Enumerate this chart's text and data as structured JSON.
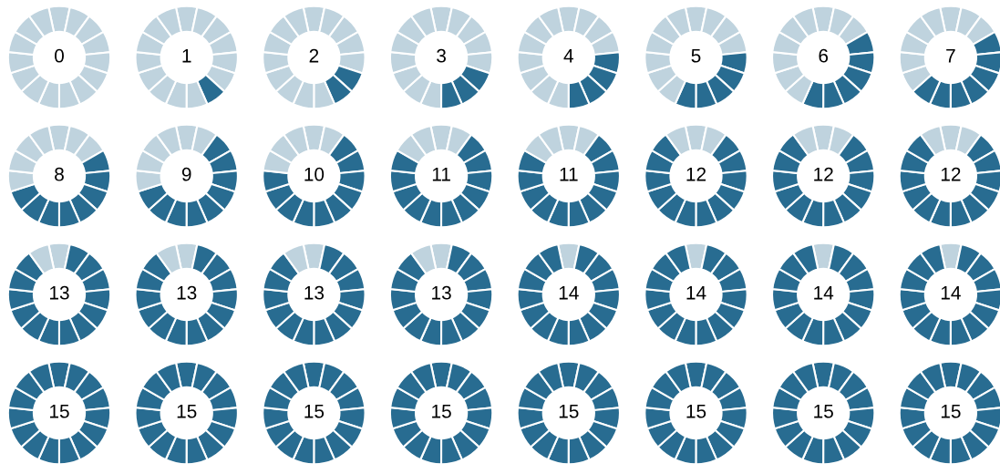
{
  "chart_data": [
    {
      "type": "donut",
      "annotations": [
        "0"
      ],
      "categories": [
        null,
        null,
        null,
        null,
        null,
        null,
        null,
        null,
        null,
        null,
        null,
        null,
        null,
        null,
        null
      ],
      "values": [
        6.67,
        6.67,
        6.67,
        6.67,
        6.67,
        6.67,
        6.67,
        6.67,
        6.67,
        6.67,
        6.66,
        6.66,
        6.66,
        6.66,
        6.66
      ],
      "colors": [
        "#bfd3de",
        "#bfd3de",
        "#bfd3de",
        "#bfd3de",
        "#bfd3de",
        "#bfd3de",
        "#bfd3de",
        "#bfd3de",
        "#bfd3de",
        "#bfd3de",
        "#bfd3de",
        "#bfd3de",
        "#bfd3de",
        "#bfd3de",
        "#bfd3de"
      ]
    },
    {
      "type": "donut",
      "annotations": [
        "1"
      ],
      "categories": [
        null,
        null,
        null,
        null,
        null,
        null,
        null,
        null,
        null,
        null,
        null,
        null,
        null,
        null,
        null
      ],
      "values": [
        6.67,
        6.67,
        6.67,
        6.67,
        6.67,
        6.67,
        6.67,
        6.67,
        6.67,
        6.67,
        6.66,
        6.66,
        6.66,
        6.66,
        6.66
      ],
      "colors": [
        "#bfd3de",
        "#bfd3de",
        "#bfd3de",
        "#bfd3de",
        "#bfd3de",
        "#bfd3de",
        "#286c91",
        "#bfd3de",
        "#bfd3de",
        "#bfd3de",
        "#bfd3de",
        "#bfd3de",
        "#bfd3de",
        "#bfd3de",
        "#bfd3de"
      ]
    },
    {
      "type": "donut",
      "annotations": [
        "2"
      ],
      "categories": [
        null,
        null,
        null,
        null,
        null,
        null,
        null,
        null,
        null,
        null,
        null,
        null,
        null,
        null,
        null
      ],
      "values": [
        6.67,
        6.67,
        6.67,
        6.67,
        6.67,
        6.67,
        6.67,
        6.67,
        6.67,
        6.67,
        6.66,
        6.66,
        6.66,
        6.66,
        6.66
      ],
      "colors": [
        "#bfd3de",
        "#bfd3de",
        "#bfd3de",
        "#bfd3de",
        "#bfd3de",
        "#286c91",
        "#286c91",
        "#bfd3de",
        "#bfd3de",
        "#bfd3de",
        "#bfd3de",
        "#bfd3de",
        "#bfd3de",
        "#bfd3de",
        "#bfd3de"
      ]
    },
    {
      "type": "donut",
      "annotations": [
        "3"
      ],
      "categories": [
        null,
        null,
        null,
        null,
        null,
        null,
        null,
        null,
        null,
        null,
        null,
        null,
        null,
        null,
        null
      ],
      "values": [
        6.67,
        6.67,
        6.67,
        6.67,
        6.67,
        6.67,
        6.67,
        6.67,
        6.67,
        6.67,
        6.66,
        6.66,
        6.66,
        6.66,
        6.66
      ],
      "colors": [
        "#bfd3de",
        "#bfd3de",
        "#bfd3de",
        "#bfd3de",
        "#bfd3de",
        "#286c91",
        "#286c91",
        "#286c91",
        "#bfd3de",
        "#bfd3de",
        "#bfd3de",
        "#bfd3de",
        "#bfd3de",
        "#bfd3de",
        "#bfd3de"
      ]
    },
    {
      "type": "donut",
      "annotations": [
        "4"
      ],
      "categories": [
        null,
        null,
        null,
        null,
        null,
        null,
        null,
        null,
        null,
        null,
        null,
        null,
        null,
        null,
        null
      ],
      "values": [
        6.67,
        6.67,
        6.67,
        6.67,
        6.67,
        6.67,
        6.67,
        6.67,
        6.67,
        6.67,
        6.66,
        6.66,
        6.66,
        6.66,
        6.66
      ],
      "colors": [
        "#bfd3de",
        "#bfd3de",
        "#bfd3de",
        "#bfd3de",
        "#286c91",
        "#286c91",
        "#286c91",
        "#286c91",
        "#bfd3de",
        "#bfd3de",
        "#bfd3de",
        "#bfd3de",
        "#bfd3de",
        "#bfd3de",
        "#bfd3de"
      ]
    },
    {
      "type": "donut",
      "annotations": [
        "5"
      ],
      "categories": [
        null,
        null,
        null,
        null,
        null,
        null,
        null,
        null,
        null,
        null,
        null,
        null,
        null,
        null,
        null
      ],
      "values": [
        6.67,
        6.67,
        6.67,
        6.67,
        6.67,
        6.67,
        6.67,
        6.67,
        6.67,
        6.67,
        6.66,
        6.66,
        6.66,
        6.66,
        6.66
      ],
      "colors": [
        "#bfd3de",
        "#bfd3de",
        "#bfd3de",
        "#bfd3de",
        "#286c91",
        "#286c91",
        "#286c91",
        "#286c91",
        "#286c91",
        "#bfd3de",
        "#bfd3de",
        "#bfd3de",
        "#bfd3de",
        "#bfd3de",
        "#bfd3de"
      ]
    },
    {
      "type": "donut",
      "annotations": [
        "6"
      ],
      "categories": [
        null,
        null,
        null,
        null,
        null,
        null,
        null,
        null,
        null,
        null,
        null,
        null,
        null,
        null,
        null
      ],
      "values": [
        6.67,
        6.67,
        6.67,
        6.67,
        6.67,
        6.67,
        6.67,
        6.67,
        6.67,
        6.67,
        6.66,
        6.66,
        6.66,
        6.66,
        6.66
      ],
      "colors": [
        "#bfd3de",
        "#bfd3de",
        "#bfd3de",
        "#286c91",
        "#286c91",
        "#286c91",
        "#286c91",
        "#286c91",
        "#286c91",
        "#bfd3de",
        "#bfd3de",
        "#bfd3de",
        "#bfd3de",
        "#bfd3de",
        "#bfd3de"
      ]
    },
    {
      "type": "donut",
      "annotations": [
        "7"
      ],
      "categories": [
        null,
        null,
        null,
        null,
        null,
        null,
        null,
        null,
        null,
        null,
        null,
        null,
        null,
        null,
        null
      ],
      "values": [
        6.67,
        6.67,
        6.67,
        6.67,
        6.67,
        6.67,
        6.67,
        6.67,
        6.67,
        6.67,
        6.66,
        6.66,
        6.66,
        6.66,
        6.66
      ],
      "colors": [
        "#bfd3de",
        "#bfd3de",
        "#bfd3de",
        "#286c91",
        "#286c91",
        "#286c91",
        "#286c91",
        "#286c91",
        "#286c91",
        "#286c91",
        "#bfd3de",
        "#bfd3de",
        "#bfd3de",
        "#bfd3de",
        "#bfd3de"
      ]
    },
    {
      "type": "donut",
      "annotations": [
        "8"
      ],
      "categories": [
        null,
        null,
        null,
        null,
        null,
        null,
        null,
        null,
        null,
        null,
        null,
        null,
        null,
        null,
        null
      ],
      "values": [
        6.67,
        6.67,
        6.67,
        6.67,
        6.67,
        6.67,
        6.67,
        6.67,
        6.67,
        6.67,
        6.66,
        6.66,
        6.66,
        6.66,
        6.66
      ],
      "colors": [
        "#bfd3de",
        "#bfd3de",
        "#bfd3de",
        "#286c91",
        "#286c91",
        "#286c91",
        "#286c91",
        "#286c91",
        "#286c91",
        "#286c91",
        "#286c91",
        "#bfd3de",
        "#bfd3de",
        "#bfd3de",
        "#bfd3de"
      ]
    },
    {
      "type": "donut",
      "annotations": [
        "9"
      ],
      "categories": [
        null,
        null,
        null,
        null,
        null,
        null,
        null,
        null,
        null,
        null,
        null,
        null,
        null,
        null,
        null
      ],
      "values": [
        6.67,
        6.67,
        6.67,
        6.67,
        6.67,
        6.67,
        6.67,
        6.67,
        6.67,
        6.67,
        6.66,
        6.66,
        6.66,
        6.66,
        6.66
      ],
      "colors": [
        "#bfd3de",
        "#bfd3de",
        "#286c91",
        "#286c91",
        "#286c91",
        "#286c91",
        "#286c91",
        "#286c91",
        "#286c91",
        "#286c91",
        "#286c91",
        "#bfd3de",
        "#bfd3de",
        "#bfd3de",
        "#bfd3de"
      ]
    },
    {
      "type": "donut",
      "annotations": [
        "10"
      ],
      "categories": [
        null,
        null,
        null,
        null,
        null,
        null,
        null,
        null,
        null,
        null,
        null,
        null,
        null,
        null,
        null
      ],
      "values": [
        6.67,
        6.67,
        6.67,
        6.67,
        6.67,
        6.67,
        6.67,
        6.67,
        6.67,
        6.67,
        6.66,
        6.66,
        6.66,
        6.66,
        6.66
      ],
      "colors": [
        "#bfd3de",
        "#bfd3de",
        "#286c91",
        "#286c91",
        "#286c91",
        "#286c91",
        "#286c91",
        "#286c91",
        "#286c91",
        "#286c91",
        "#286c91",
        "#286c91",
        "#bfd3de",
        "#bfd3de",
        "#bfd3de"
      ]
    },
    {
      "type": "donut",
      "annotations": [
        "11"
      ],
      "categories": [
        null,
        null,
        null,
        null,
        null,
        null,
        null,
        null,
        null,
        null,
        null,
        null,
        null,
        null,
        null
      ],
      "values": [
        6.67,
        6.67,
        6.67,
        6.67,
        6.67,
        6.67,
        6.67,
        6.67,
        6.67,
        6.67,
        6.66,
        6.66,
        6.66,
        6.66,
        6.66
      ],
      "colors": [
        "#bfd3de",
        "#bfd3de",
        "#286c91",
        "#286c91",
        "#286c91",
        "#286c91",
        "#286c91",
        "#286c91",
        "#286c91",
        "#286c91",
        "#286c91",
        "#286c91",
        "#286c91",
        "#bfd3de",
        "#bfd3de"
      ]
    },
    {
      "type": "donut",
      "annotations": [
        "11"
      ],
      "categories": [
        null,
        null,
        null,
        null,
        null,
        null,
        null,
        null,
        null,
        null,
        null,
        null,
        null,
        null,
        null
      ],
      "values": [
        6.67,
        6.67,
        6.67,
        6.67,
        6.67,
        6.67,
        6.67,
        6.67,
        6.67,
        6.67,
        6.66,
        6.66,
        6.66,
        6.66,
        6.66
      ],
      "colors": [
        "#bfd3de",
        "#bfd3de",
        "#286c91",
        "#286c91",
        "#286c91",
        "#286c91",
        "#286c91",
        "#286c91",
        "#286c91",
        "#286c91",
        "#286c91",
        "#286c91",
        "#286c91",
        "#bfd3de",
        "#bfd3de"
      ]
    },
    {
      "type": "donut",
      "annotations": [
        "12"
      ],
      "categories": [
        null,
        null,
        null,
        null,
        null,
        null,
        null,
        null,
        null,
        null,
        null,
        null,
        null,
        null,
        null
      ],
      "values": [
        6.67,
        6.67,
        6.67,
        6.67,
        6.67,
        6.67,
        6.67,
        6.67,
        6.67,
        6.67,
        6.66,
        6.66,
        6.66,
        6.66,
        6.66
      ],
      "colors": [
        "#bfd3de",
        "#bfd3de",
        "#286c91",
        "#286c91",
        "#286c91",
        "#286c91",
        "#286c91",
        "#286c91",
        "#286c91",
        "#286c91",
        "#286c91",
        "#286c91",
        "#286c91",
        "#286c91",
        "#bfd3de"
      ]
    },
    {
      "type": "donut",
      "annotations": [
        "12"
      ],
      "categories": [
        null,
        null,
        null,
        null,
        null,
        null,
        null,
        null,
        null,
        null,
        null,
        null,
        null,
        null,
        null
      ],
      "values": [
        6.67,
        6.67,
        6.67,
        6.67,
        6.67,
        6.67,
        6.67,
        6.67,
        6.67,
        6.67,
        6.66,
        6.66,
        6.66,
        6.66,
        6.66
      ],
      "colors": [
        "#bfd3de",
        "#bfd3de",
        "#286c91",
        "#286c91",
        "#286c91",
        "#286c91",
        "#286c91",
        "#286c91",
        "#286c91",
        "#286c91",
        "#286c91",
        "#286c91",
        "#286c91",
        "#286c91",
        "#bfd3de"
      ]
    },
    {
      "type": "donut",
      "annotations": [
        "12"
      ],
      "categories": [
        null,
        null,
        null,
        null,
        null,
        null,
        null,
        null,
        null,
        null,
        null,
        null,
        null,
        null,
        null
      ],
      "values": [
        6.67,
        6.67,
        6.67,
        6.67,
        6.67,
        6.67,
        6.67,
        6.67,
        6.67,
        6.67,
        6.66,
        6.66,
        6.66,
        6.66,
        6.66
      ],
      "colors": [
        "#bfd3de",
        "#bfd3de",
        "#286c91",
        "#286c91",
        "#286c91",
        "#286c91",
        "#286c91",
        "#286c91",
        "#286c91",
        "#286c91",
        "#286c91",
        "#286c91",
        "#286c91",
        "#286c91",
        "#bfd3de"
      ]
    },
    {
      "type": "donut",
      "annotations": [
        "13"
      ],
      "categories": [
        null,
        null,
        null,
        null,
        null,
        null,
        null,
        null,
        null,
        null,
        null,
        null,
        null,
        null,
        null
      ],
      "values": [
        6.67,
        6.67,
        6.67,
        6.67,
        6.67,
        6.67,
        6.67,
        6.67,
        6.67,
        6.67,
        6.66,
        6.66,
        6.66,
        6.66,
        6.66
      ],
      "colors": [
        "#bfd3de",
        "#286c91",
        "#286c91",
        "#286c91",
        "#286c91",
        "#286c91",
        "#286c91",
        "#286c91",
        "#286c91",
        "#286c91",
        "#286c91",
        "#286c91",
        "#286c91",
        "#286c91",
        "#bfd3de"
      ]
    },
    {
      "type": "donut",
      "annotations": [
        "13"
      ],
      "categories": [
        null,
        null,
        null,
        null,
        null,
        null,
        null,
        null,
        null,
        null,
        null,
        null,
        null,
        null,
        null
      ],
      "values": [
        6.67,
        6.67,
        6.67,
        6.67,
        6.67,
        6.67,
        6.67,
        6.67,
        6.67,
        6.67,
        6.66,
        6.66,
        6.66,
        6.66,
        6.66
      ],
      "colors": [
        "#bfd3de",
        "#286c91",
        "#286c91",
        "#286c91",
        "#286c91",
        "#286c91",
        "#286c91",
        "#286c91",
        "#286c91",
        "#286c91",
        "#286c91",
        "#286c91",
        "#286c91",
        "#286c91",
        "#bfd3de"
      ]
    },
    {
      "type": "donut",
      "annotations": [
        "13"
      ],
      "categories": [
        null,
        null,
        null,
        null,
        null,
        null,
        null,
        null,
        null,
        null,
        null,
        null,
        null,
        null,
        null
      ],
      "values": [
        6.67,
        6.67,
        6.67,
        6.67,
        6.67,
        6.67,
        6.67,
        6.67,
        6.67,
        6.67,
        6.66,
        6.66,
        6.66,
        6.66,
        6.66
      ],
      "colors": [
        "#bfd3de",
        "#286c91",
        "#286c91",
        "#286c91",
        "#286c91",
        "#286c91",
        "#286c91",
        "#286c91",
        "#286c91",
        "#286c91",
        "#286c91",
        "#286c91",
        "#286c91",
        "#286c91",
        "#bfd3de"
      ]
    },
    {
      "type": "donut",
      "annotations": [
        "13"
      ],
      "categories": [
        null,
        null,
        null,
        null,
        null,
        null,
        null,
        null,
        null,
        null,
        null,
        null,
        null,
        null,
        null
      ],
      "values": [
        6.67,
        6.67,
        6.67,
        6.67,
        6.67,
        6.67,
        6.67,
        6.67,
        6.67,
        6.67,
        6.66,
        6.66,
        6.66,
        6.66,
        6.66
      ],
      "colors": [
        "#bfd3de",
        "#286c91",
        "#286c91",
        "#286c91",
        "#286c91",
        "#286c91",
        "#286c91",
        "#286c91",
        "#286c91",
        "#286c91",
        "#286c91",
        "#286c91",
        "#286c91",
        "#286c91",
        "#bfd3de"
      ]
    },
    {
      "type": "donut",
      "annotations": [
        "14"
      ],
      "categories": [
        null,
        null,
        null,
        null,
        null,
        null,
        null,
        null,
        null,
        null,
        null,
        null,
        null,
        null,
        null
      ],
      "values": [
        6.67,
        6.67,
        6.67,
        6.67,
        6.67,
        6.67,
        6.67,
        6.67,
        6.67,
        6.67,
        6.66,
        6.66,
        6.66,
        6.66,
        6.66
      ],
      "colors": [
        "#bfd3de",
        "#286c91",
        "#286c91",
        "#286c91",
        "#286c91",
        "#286c91",
        "#286c91",
        "#286c91",
        "#286c91",
        "#286c91",
        "#286c91",
        "#286c91",
        "#286c91",
        "#286c91",
        "#286c91"
      ]
    },
    {
      "type": "donut",
      "annotations": [
        "14"
      ],
      "categories": [
        null,
        null,
        null,
        null,
        null,
        null,
        null,
        null,
        null,
        null,
        null,
        null,
        null,
        null,
        null
      ],
      "values": [
        6.67,
        6.67,
        6.67,
        6.67,
        6.67,
        6.67,
        6.67,
        6.67,
        6.67,
        6.67,
        6.66,
        6.66,
        6.66,
        6.66,
        6.66
      ],
      "colors": [
        "#bfd3de",
        "#286c91",
        "#286c91",
        "#286c91",
        "#286c91",
        "#286c91",
        "#286c91",
        "#286c91",
        "#286c91",
        "#286c91",
        "#286c91",
        "#286c91",
        "#286c91",
        "#286c91",
        "#286c91"
      ]
    },
    {
      "type": "donut",
      "annotations": [
        "14"
      ],
      "categories": [
        null,
        null,
        null,
        null,
        null,
        null,
        null,
        null,
        null,
        null,
        null,
        null,
        null,
        null,
        null
      ],
      "values": [
        6.67,
        6.67,
        6.67,
        6.67,
        6.67,
        6.67,
        6.67,
        6.67,
        6.67,
        6.67,
        6.66,
        6.66,
        6.66,
        6.66,
        6.66
      ],
      "colors": [
        "#bfd3de",
        "#286c91",
        "#286c91",
        "#286c91",
        "#286c91",
        "#286c91",
        "#286c91",
        "#286c91",
        "#286c91",
        "#286c91",
        "#286c91",
        "#286c91",
        "#286c91",
        "#286c91",
        "#286c91"
      ]
    },
    {
      "type": "donut",
      "annotations": [
        "14"
      ],
      "categories": [
        null,
        null,
        null,
        null,
        null,
        null,
        null,
        null,
        null,
        null,
        null,
        null,
        null,
        null,
        null
      ],
      "values": [
        6.67,
        6.67,
        6.67,
        6.67,
        6.67,
        6.67,
        6.67,
        6.67,
        6.67,
        6.67,
        6.66,
        6.66,
        6.66,
        6.66,
        6.66
      ],
      "colors": [
        "#bfd3de",
        "#286c91",
        "#286c91",
        "#286c91",
        "#286c91",
        "#286c91",
        "#286c91",
        "#286c91",
        "#286c91",
        "#286c91",
        "#286c91",
        "#286c91",
        "#286c91",
        "#286c91",
        "#286c91"
      ]
    },
    {
      "type": "donut",
      "annotations": [
        "15"
      ],
      "categories": [
        null,
        null,
        null,
        null,
        null,
        null,
        null,
        null,
        null,
        null,
        null,
        null,
        null,
        null,
        null
      ],
      "values": [
        6.67,
        6.67,
        6.67,
        6.67,
        6.67,
        6.67,
        6.67,
        6.67,
        6.67,
        6.67,
        6.66,
        6.66,
        6.66,
        6.66,
        6.66
      ],
      "colors": [
        "#286c91",
        "#286c91",
        "#286c91",
        "#286c91",
        "#286c91",
        "#286c91",
        "#286c91",
        "#286c91",
        "#286c91",
        "#286c91",
        "#286c91",
        "#286c91",
        "#286c91",
        "#286c91",
        "#286c91"
      ]
    },
    {
      "type": "donut",
      "annotations": [
        "15"
      ],
      "categories": [
        null,
        null,
        null,
        null,
        null,
        null,
        null,
        null,
        null,
        null,
        null,
        null,
        null,
        null,
        null
      ],
      "values": [
        6.67,
        6.67,
        6.67,
        6.67,
        6.67,
        6.67,
        6.67,
        6.67,
        6.67,
        6.67,
        6.66,
        6.66,
        6.66,
        6.66,
        6.66
      ],
      "colors": [
        "#286c91",
        "#286c91",
        "#286c91",
        "#286c91",
        "#286c91",
        "#286c91",
        "#286c91",
        "#286c91",
        "#286c91",
        "#286c91",
        "#286c91",
        "#286c91",
        "#286c91",
        "#286c91",
        "#286c91"
      ]
    },
    {
      "type": "donut",
      "annotations": [
        "15"
      ],
      "categories": [
        null,
        null,
        null,
        null,
        null,
        null,
        null,
        null,
        null,
        null,
        null,
        null,
        null,
        null,
        null
      ],
      "values": [
        6.67,
        6.67,
        6.67,
        6.67,
        6.67,
        6.67,
        6.67,
        6.67,
        6.67,
        6.67,
        6.66,
        6.66,
        6.66,
        6.66,
        6.66
      ],
      "colors": [
        "#286c91",
        "#286c91",
        "#286c91",
        "#286c91",
        "#286c91",
        "#286c91",
        "#286c91",
        "#286c91",
        "#286c91",
        "#286c91",
        "#286c91",
        "#286c91",
        "#286c91",
        "#286c91",
        "#286c91"
      ]
    },
    {
      "type": "donut",
      "annotations": [
        "15"
      ],
      "categories": [
        null,
        null,
        null,
        null,
        null,
        null,
        null,
        null,
        null,
        null,
        null,
        null,
        null,
        null,
        null
      ],
      "values": [
        6.67,
        6.67,
        6.67,
        6.67,
        6.67,
        6.67,
        6.67,
        6.67,
        6.67,
        6.67,
        6.66,
        6.66,
        6.66,
        6.66,
        6.66
      ],
      "colors": [
        "#286c91",
        "#286c91",
        "#286c91",
        "#286c91",
        "#286c91",
        "#286c91",
        "#286c91",
        "#286c91",
        "#286c91",
        "#286c91",
        "#286c91",
        "#286c91",
        "#286c91",
        "#286c91",
        "#286c91"
      ]
    },
    {
      "type": "donut",
      "annotations": [
        "15"
      ],
      "categories": [
        null,
        null,
        null,
        null,
        null,
        null,
        null,
        null,
        null,
        null,
        null,
        null,
        null,
        null,
        null
      ],
      "values": [
        6.67,
        6.67,
        6.67,
        6.67,
        6.67,
        6.67,
        6.67,
        6.67,
        6.67,
        6.67,
        6.66,
        6.66,
        6.66,
        6.66,
        6.66
      ],
      "colors": [
        "#286c91",
        "#286c91",
        "#286c91",
        "#286c91",
        "#286c91",
        "#286c91",
        "#286c91",
        "#286c91",
        "#286c91",
        "#286c91",
        "#286c91",
        "#286c91",
        "#286c91",
        "#286c91",
        "#286c91"
      ]
    },
    {
      "type": "donut",
      "annotations": [
        "15"
      ],
      "categories": [
        null,
        null,
        null,
        null,
        null,
        null,
        null,
        null,
        null,
        null,
        null,
        null,
        null,
        null,
        null
      ],
      "values": [
        6.67,
        6.67,
        6.67,
        6.67,
        6.67,
        6.67,
        6.67,
        6.67,
        6.67,
        6.67,
        6.66,
        6.66,
        6.66,
        6.66,
        6.66
      ],
      "colors": [
        "#286c91",
        "#286c91",
        "#286c91",
        "#286c91",
        "#286c91",
        "#286c91",
        "#286c91",
        "#286c91",
        "#286c91",
        "#286c91",
        "#286c91",
        "#286c91",
        "#286c91",
        "#286c91",
        "#286c91"
      ]
    },
    {
      "type": "donut",
      "annotations": [
        "15"
      ],
      "categories": [
        null,
        null,
        null,
        null,
        null,
        null,
        null,
        null,
        null,
        null,
        null,
        null,
        null,
        null,
        null
      ],
      "values": [
        6.67,
        6.67,
        6.67,
        6.67,
        6.67,
        6.67,
        6.67,
        6.67,
        6.67,
        6.67,
        6.66,
        6.66,
        6.66,
        6.66,
        6.66
      ],
      "colors": [
        "#286c91",
        "#286c91",
        "#286c91",
        "#286c91",
        "#286c91",
        "#286c91",
        "#286c91",
        "#286c91",
        "#286c91",
        "#286c91",
        "#286c91",
        "#286c91",
        "#286c91",
        "#286c91",
        "#286c91"
      ]
    },
    {
      "type": "donut",
      "annotations": [
        "15"
      ],
      "categories": [
        null,
        null,
        null,
        null,
        null,
        null,
        null,
        null,
        null,
        null,
        null,
        null,
        null,
        null,
        null
      ],
      "values": [
        6.67,
        6.67,
        6.67,
        6.67,
        6.67,
        6.67,
        6.67,
        6.67,
        6.67,
        6.67,
        6.66,
        6.66,
        6.66,
        6.66,
        6.66
      ],
      "colors": [
        "#286c91",
        "#286c91",
        "#286c91",
        "#286c91",
        "#286c91",
        "#286c91",
        "#286c91",
        "#286c91",
        "#286c91",
        "#286c91",
        "#286c91",
        "#286c91",
        "#286c91",
        "#286c91",
        "#286c91"
      ]
    }
  ]
}
